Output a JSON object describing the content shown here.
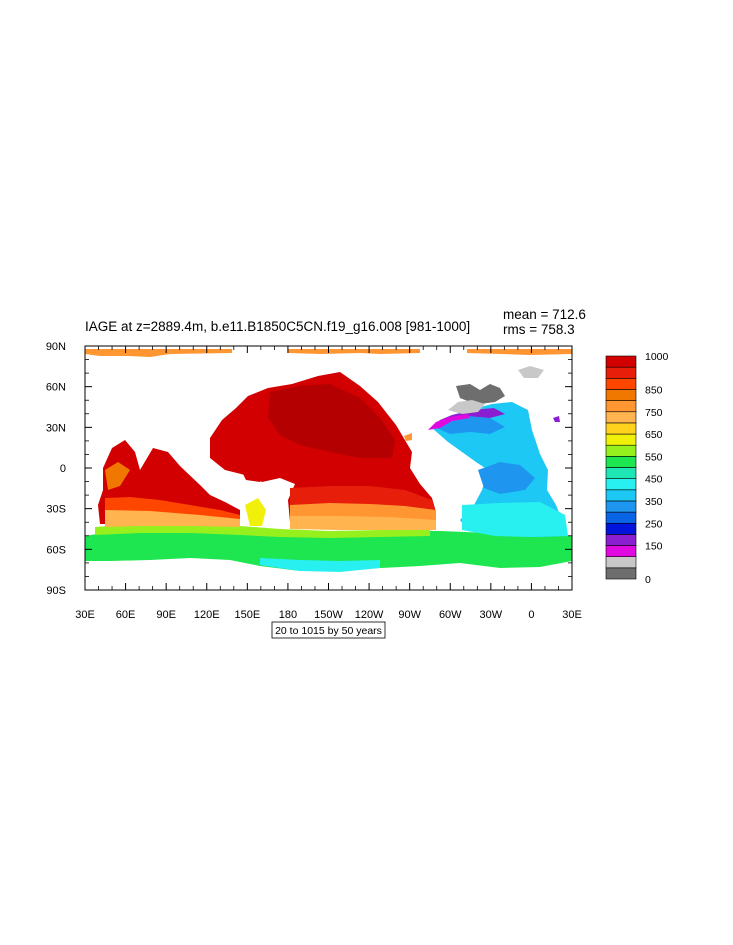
{
  "title": "IAGE at z=2889.4m, b.e11.B1850C5CN.f19_g16.008 [981-1000]",
  "stats": {
    "mean": "mean = 712.6",
    "rms": "rms = 758.3"
  },
  "contour_info": "20 to 1015 by 50 years",
  "map_data": {
    "type": "contour map",
    "projection": "cylindrical equidistant",
    "lon_range": [
      30,
      390
    ],
    "lat_range": [
      -90,
      90
    ],
    "x_ticks": [
      {
        "value": 30,
        "label": "30E"
      },
      {
        "value": 60,
        "label": "60E"
      },
      {
        "value": 90,
        "label": "90E"
      },
      {
        "value": 120,
        "label": "120E"
      },
      {
        "value": 150,
        "label": "150E"
      },
      {
        "value": 180,
        "label": "180"
      },
      {
        "value": 210,
        "label": "150W"
      },
      {
        "value": 240,
        "label": "120W"
      },
      {
        "value": 270,
        "label": "90W"
      },
      {
        "value": 300,
        "label": "60W"
      },
      {
        "value": 330,
        "label": "30W"
      },
      {
        "value": 360,
        "label": "0"
      },
      {
        "value": 390,
        "label": "30E"
      }
    ],
    "y_ticks": [
      {
        "value": 90,
        "label": "90N"
      },
      {
        "value": 60,
        "label": "60N"
      },
      {
        "value": 30,
        "label": "30N"
      },
      {
        "value": 0,
        "label": "0"
      },
      {
        "value": -30,
        "label": "30S"
      },
      {
        "value": -60,
        "label": "60S"
      },
      {
        "value": -90,
        "label": "90S"
      }
    ],
    "colorbar": {
      "colors": [
        "#6e6e6e",
        "#c8c8c8",
        "#e00ae0",
        "#8c1ed2",
        "#0014dc",
        "#0a64e6",
        "#1e96f0",
        "#1ec8f5",
        "#28f0f0",
        "#1ee6b4",
        "#1ee650",
        "#96f01e",
        "#f0f00a",
        "#ffd21e",
        "#ffb450",
        "#ff9632",
        "#f07800",
        "#ff4600",
        "#e61e0a",
        "#d20000"
      ],
      "labels": [
        {
          "index": 0,
          "text": "0"
        },
        {
          "index": 3,
          "text": "150"
        },
        {
          "index": 5,
          "text": "250"
        },
        {
          "index": 7,
          "text": "350"
        },
        {
          "index": 9,
          "text": "450"
        },
        {
          "index": 11,
          "text": "550"
        },
        {
          "index": 13,
          "text": "650"
        },
        {
          "index": 15,
          "text": "750"
        },
        {
          "index": 17,
          "text": "850"
        },
        {
          "index": 20,
          "text": "1000"
        }
      ]
    }
  }
}
